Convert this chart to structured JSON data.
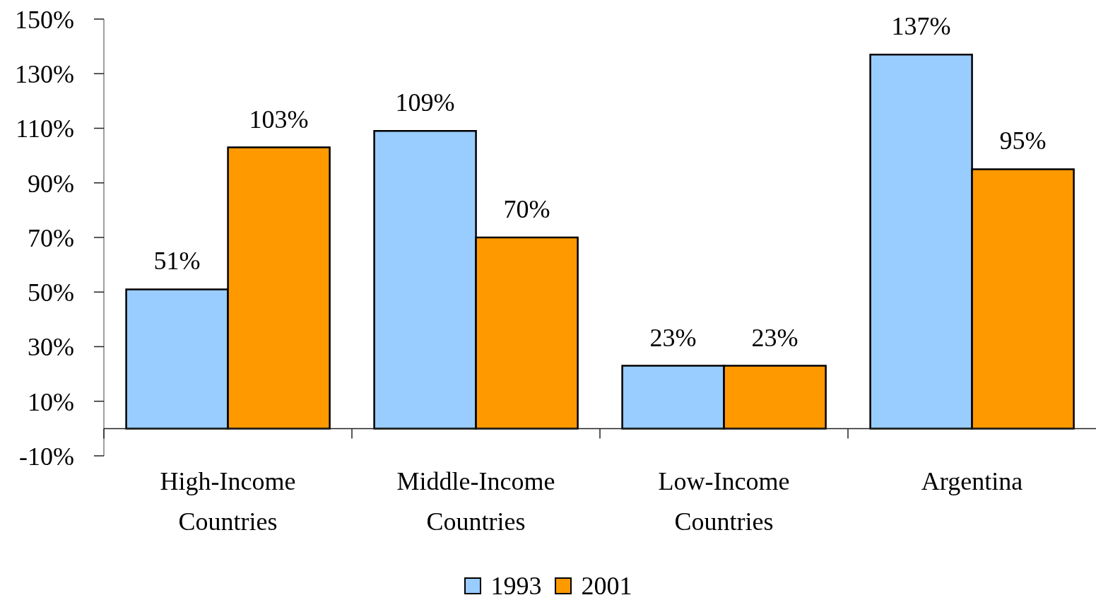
{
  "chart_data": {
    "type": "bar",
    "categories": [
      "High-Income Countries",
      "Middle-Income Countries",
      "Low-Income Countries",
      "Argentina"
    ],
    "series": [
      {
        "name": "1993",
        "color": "#99ccff",
        "values": [
          51,
          109,
          23,
          137
        ],
        "value_labels": [
          "51%",
          "109%",
          "23%",
          "137%"
        ]
      },
      {
        "name": "2001",
        "color": "#ff9900",
        "values": [
          103,
          70,
          23,
          95
        ],
        "value_labels": [
          "103%",
          "70%",
          "23%",
          "95%"
        ]
      }
    ],
    "ylim": [
      -10,
      150
    ],
    "yticks": [
      {
        "value": -10,
        "label": "-10%"
      },
      {
        "value": 10,
        "label": "10%"
      },
      {
        "value": 30,
        "label": "30%"
      },
      {
        "value": 50,
        "label": "50%"
      },
      {
        "value": 70,
        "label": "70%"
      },
      {
        "value": 90,
        "label": "90%"
      },
      {
        "value": 110,
        "label": "110%"
      },
      {
        "value": 130,
        "label": "130%"
      },
      {
        "value": 150,
        "label": "150%"
      }
    ],
    "grid": false,
    "legend": "bottom"
  }
}
